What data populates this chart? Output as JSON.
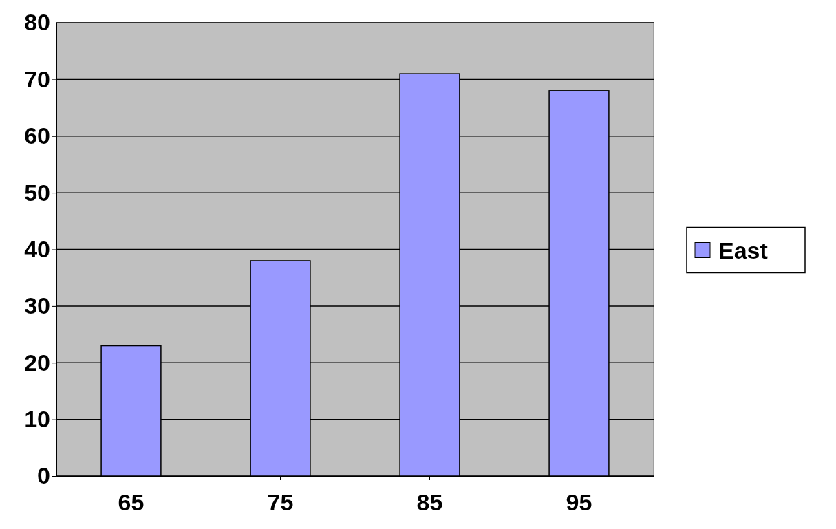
{
  "chart_data": {
    "type": "bar",
    "categories": [
      "65",
      "75",
      "85",
      "95"
    ],
    "series": [
      {
        "name": "East",
        "color": "#9999ff",
        "values": [
          23,
          38,
          71,
          68
        ]
      }
    ],
    "ylim": [
      0,
      80
    ],
    "yticks": [
      0,
      10,
      20,
      30,
      40,
      50,
      60,
      70,
      80
    ],
    "grid": "y",
    "legend": "right"
  }
}
